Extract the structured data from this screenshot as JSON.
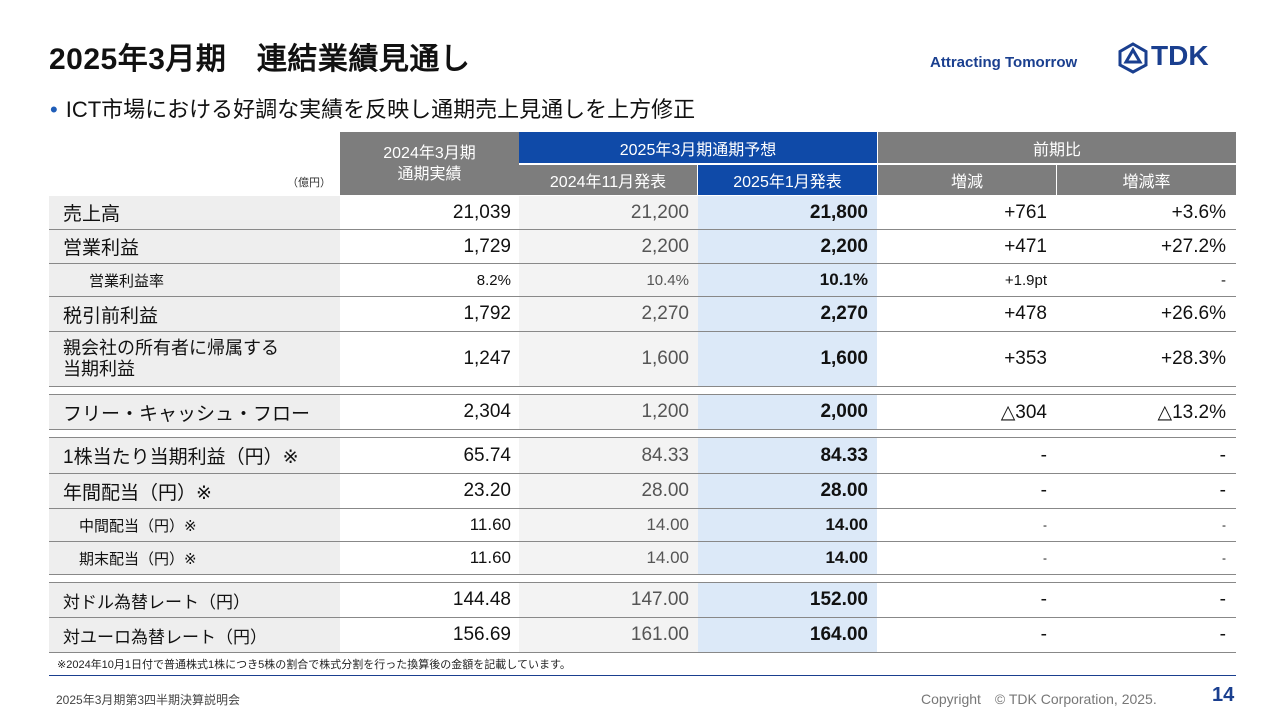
{
  "header": {
    "title": "2025年3月期　連結業績見通し",
    "tagline": "Attracting Tomorrow",
    "logo_text": "TDK",
    "subtitle_bullet": "•",
    "subtitle": "ICT市場における好調な実績を反映し通期売上見通しを上方修正"
  },
  "table": {
    "unit": "（億円）",
    "headers": {
      "actual": "2024年3月期\n通期実績",
      "forecast_group": "2025年3月期通期予想",
      "nov": "2024年11月発表",
      "jan": "2025年1月発表",
      "yoy_group": "前期比",
      "diff": "増減",
      "rate": "増減率"
    },
    "rows": [
      {
        "label": "売上高",
        "actual": "21,039",
        "nov": "21,200",
        "jan": "21,800",
        "diff": "+761",
        "rate": "+3.6%"
      },
      {
        "label": "営業利益",
        "actual": "1,729",
        "nov": "2,200",
        "jan": "2,200",
        "diff": "+471",
        "rate": "+27.2%"
      },
      {
        "label": "営業利益率",
        "actual": "8.2%",
        "nov": "10.4%",
        "jan": "10.1%",
        "diff": "+1.9pt",
        "rate": "-"
      },
      {
        "label": "税引前利益",
        "actual": "1,792",
        "nov": "2,270",
        "jan": "2,270",
        "diff": "+478",
        "rate": "+26.6%"
      },
      {
        "label": "親会社の所有者に帰属する\n当期利益",
        "actual": "1,247",
        "nov": "1,600",
        "jan": "1,600",
        "diff": "+353",
        "rate": "+28.3%"
      },
      {
        "label": "フリー・キャッシュ・フロー",
        "actual": "2,304",
        "nov": "1,200",
        "jan": "2,000",
        "diff": "△304",
        "rate": "△13.2%"
      },
      {
        "label": "1株当たり当期利益（円）※",
        "actual": "65.74",
        "nov": "84.33",
        "jan": "84.33",
        "diff": "-",
        "rate": "-"
      },
      {
        "label": "年間配当（円）※",
        "actual": "23.20",
        "nov": "28.00",
        "jan": "28.00",
        "diff": "-",
        "rate": "-"
      },
      {
        "label": "中間配当（円）※",
        "actual": "11.60",
        "nov": "14.00",
        "jan": "14.00",
        "diff": "-",
        "rate": "-"
      },
      {
        "label": "期末配当（円）※",
        "actual": "11.60",
        "nov": "14.00",
        "jan": "14.00",
        "diff": "-",
        "rate": "-"
      },
      {
        "label": "対ドル為替レート（円）",
        "actual": "144.48",
        "nov": "147.00",
        "jan": "152.00",
        "diff": "-",
        "rate": "-"
      },
      {
        "label": "対ユーロ為替レート（円）",
        "actual": "156.69",
        "nov": "161.00",
        "jan": "164.00",
        "diff": "-",
        "rate": "-"
      }
    ]
  },
  "note": "※2024年10月1日付で普通株式1株につき5株の割合で株式分割を行った換算後の金額を記載しています。",
  "footer": {
    "left": "2025年3月期第3四半期決算説明会",
    "copyright": "Copyright　© TDK Corporation, 2025.",
    "page": "14"
  },
  "colors": {
    "brand_blue": "#1a3f8f",
    "header_gray": "#7d7d7d",
    "header_blue": "#1f56b2",
    "highlight_col": "#dce9f8"
  }
}
